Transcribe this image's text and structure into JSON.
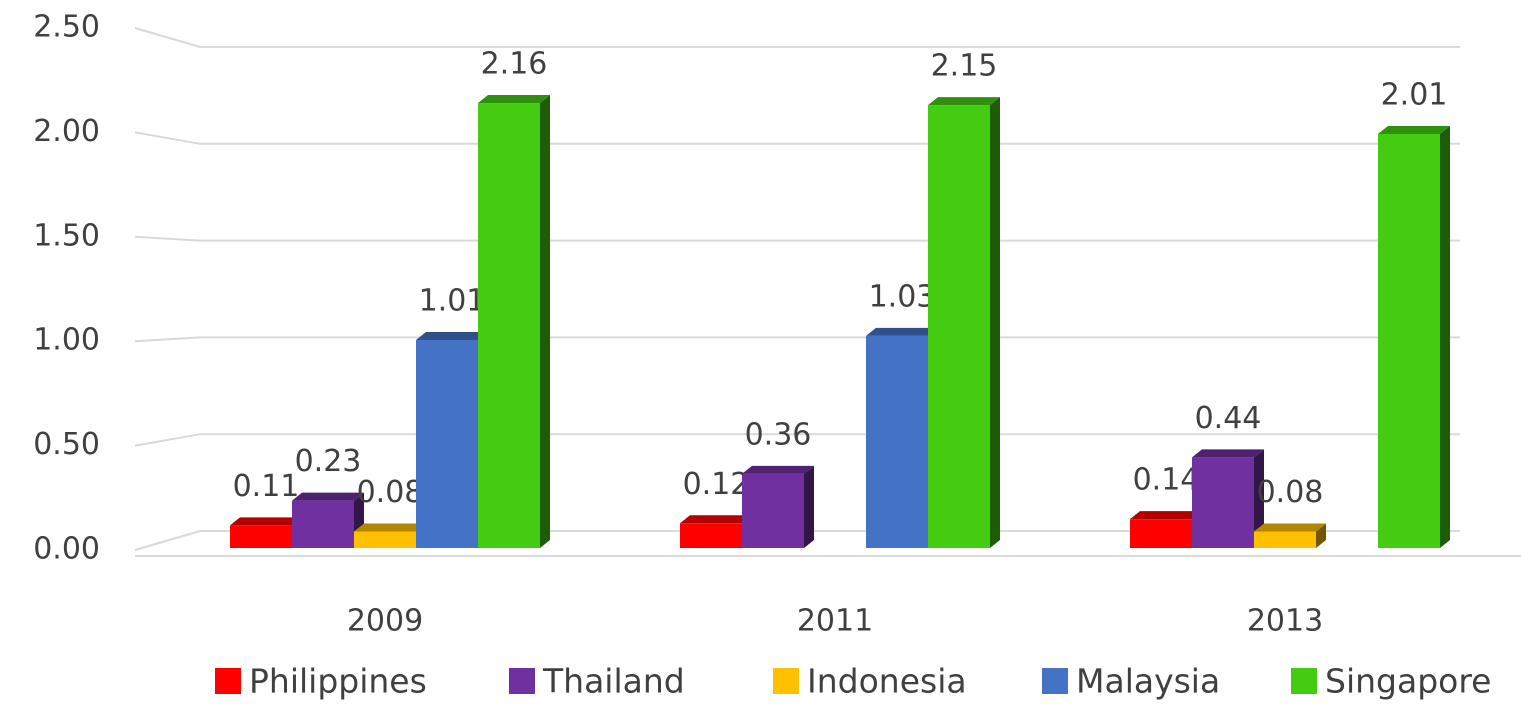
{
  "chart_data": {
    "type": "bar3d",
    "categories": [
      "2009",
      "2011",
      "2013"
    ],
    "series": [
      {
        "name": "Philippines",
        "color": "#ff0000",
        "values": [
          0.11,
          0.12,
          0.14
        ]
      },
      {
        "name": "Thailand",
        "color": "#7030a0",
        "values": [
          0.23,
          0.36,
          0.44
        ]
      },
      {
        "name": "Indonesia",
        "color": "#ffc000",
        "values": [
          0.08,
          null,
          0.08
        ]
      },
      {
        "name": "Malaysia",
        "color": "#4472c4",
        "values": [
          1.01,
          1.03,
          null
        ]
      },
      {
        "name": "Singapore",
        "color": "#44cc11",
        "values": [
          2.16,
          2.15,
          2.01
        ]
      }
    ],
    "ylim": [
      0,
      2.5
    ],
    "yticks": [
      {
        "value": 0,
        "label": "0.00"
      },
      {
        "value": 0.5,
        "label": "0.50"
      },
      {
        "value": 1,
        "label": "1.00"
      },
      {
        "value": 1.5,
        "label": "1.50"
      },
      {
        "value": 2,
        "label": "2.00"
      },
      {
        "value": 2.5,
        "label": "2.50"
      }
    ],
    "grid": true,
    "legend": "bottom"
  }
}
